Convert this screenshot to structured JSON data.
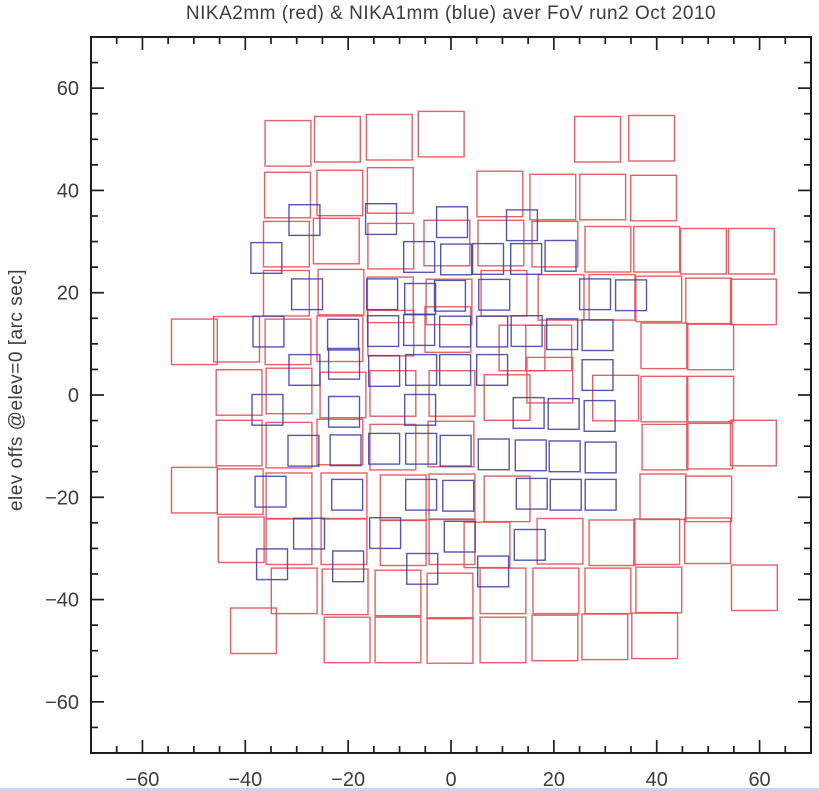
{
  "figure": {
    "background": "#ffffff",
    "frame_color": "#1d1d1d"
  },
  "chart_data": {
    "type": "scatter",
    "marker": "open-square",
    "title": "NIKA2mm (red) & NIKA1mm (blue) aver FoV run2 Oct 2010",
    "xlabel": "",
    "ylabel": "elev offs @elev=0 [arc sec]",
    "xlim": [
      -70,
      70
    ],
    "ylim": [
      -70,
      70
    ],
    "x_ticks": [
      -60,
      -40,
      -20,
      0,
      20,
      40,
      60
    ],
    "y_ticks": [
      -60,
      -40,
      -20,
      0,
      20,
      40,
      60
    ],
    "minor_tick_step": 5,
    "grid": false,
    "legend_position": "none",
    "series": [
      {
        "name": "NIKA2mm",
        "color": "#e14b50",
        "marker": "open-square",
        "marker_size_arcsec": 8.9,
        "points": [
          [
            -31.7,
            49.2
          ],
          [
            -22.1,
            50.0
          ],
          [
            -12.0,
            50.4
          ],
          [
            -1.9,
            51.0
          ],
          [
            28.5,
            50.0
          ],
          [
            39.0,
            50.2
          ],
          [
            -31.8,
            39.1
          ],
          [
            -21.6,
            39.5
          ],
          [
            -11.8,
            40.0
          ],
          [
            9.5,
            39.3
          ],
          [
            19.8,
            38.7
          ],
          [
            29.5,
            38.7
          ],
          [
            39.4,
            38.5
          ],
          [
            -32.0,
            29.5
          ],
          [
            -22.3,
            30.1
          ],
          [
            -11.7,
            29.1
          ],
          [
            -0.8,
            29.7
          ],
          [
            9.7,
            29.7
          ],
          [
            20.2,
            29.5
          ],
          [
            30.5,
            28.5
          ],
          [
            40.0,
            28.5
          ],
          [
            49.1,
            28.1
          ],
          [
            58.4,
            28.1
          ],
          [
            -32.0,
            19.9
          ],
          [
            -21.4,
            20.1
          ],
          [
            -11.8,
            18.6
          ],
          [
            -0.4,
            18.2
          ],
          [
            10.3,
            19.9
          ],
          [
            21.4,
            19.1
          ],
          [
            31.3,
            19.1
          ],
          [
            40.4,
            18.8
          ],
          [
            50.1,
            18.4
          ],
          [
            58.8,
            18.2
          ],
          [
            -49.9,
            10.4
          ],
          [
            -41.7,
            10.9
          ],
          [
            -31.7,
            10.4
          ],
          [
            -21.6,
            11.0
          ],
          [
            -11.7,
            12.1
          ],
          [
            -0.6,
            12.8
          ],
          [
            13.8,
            9.2
          ],
          [
            19.0,
            9.2
          ],
          [
            41.4,
            9.6
          ],
          [
            50.5,
            9.4
          ],
          [
            -41.2,
            0.5
          ],
          [
            -31.5,
            0.8
          ],
          [
            -21.0,
            0.0
          ],
          [
            -11.3,
            0.3
          ],
          [
            0.2,
            0.3
          ],
          [
            10.9,
            -0.5
          ],
          [
            19.2,
            2.9
          ],
          [
            32.0,
            -0.6
          ],
          [
            41.4,
            -0.8
          ],
          [
            50.5,
            -0.8
          ],
          [
            -41.2,
            -9.4
          ],
          [
            -31.5,
            -9.8
          ],
          [
            -21.6,
            -9.2
          ],
          [
            -11.3,
            -10.2
          ],
          [
            0.0,
            -9.6
          ],
          [
            41.6,
            -10.2
          ],
          [
            50.3,
            -10.0
          ],
          [
            58.8,
            -9.4
          ],
          [
            -49.9,
            -18.6
          ],
          [
            -41.0,
            -18.9
          ],
          [
            -31.5,
            -19.7
          ],
          [
            -20.8,
            -19.7
          ],
          [
            -9.3,
            -20.1
          ],
          [
            0.2,
            -19.9
          ],
          [
            10.9,
            -20.3
          ],
          [
            41.2,
            -19.9
          ],
          [
            50.1,
            -20.3
          ],
          [
            -40.8,
            -28.3
          ],
          [
            -31.5,
            -28.7
          ],
          [
            -20.8,
            -28.7
          ],
          [
            -9.3,
            -28.9
          ],
          [
            0.2,
            -28.7
          ],
          [
            7.0,
            -29.3
          ],
          [
            21.2,
            -28.6
          ],
          [
            31.3,
            -28.9
          ],
          [
            40.0,
            -28.7
          ],
          [
            49.9,
            -28.5
          ],
          [
            -30.5,
            -38.3
          ],
          [
            -20.6,
            -38.5
          ],
          [
            -10.3,
            -38.7
          ],
          [
            -0.2,
            -39.3
          ],
          [
            10.1,
            -38.3
          ],
          [
            20.4,
            -38.3
          ],
          [
            30.5,
            -38.3
          ],
          [
            40.4,
            -38.1
          ],
          [
            59.0,
            -37.7
          ],
          [
            -38.4,
            -46.1
          ],
          [
            -20.2,
            -47.9
          ],
          [
            -10.3,
            -47.9
          ],
          [
            -0.2,
            -48.0
          ],
          [
            10.1,
            -47.9
          ],
          [
            20.2,
            -47.5
          ],
          [
            29.9,
            -47.3
          ],
          [
            39.6,
            -47.1
          ]
        ]
      },
      {
        "name": "NIKA1mm",
        "color": "#3f3fab",
        "marker": "open-square",
        "marker_size_arcsec": 6.0,
        "points": [
          [
            -28.5,
            34.2
          ],
          [
            -13.6,
            34.4
          ],
          [
            0.2,
            33.8
          ],
          [
            13.8,
            33.2
          ],
          [
            -35.9,
            26.8
          ],
          [
            -6.2,
            27.0
          ],
          [
            1.0,
            26.5
          ],
          [
            7.2,
            26.6
          ],
          [
            14.6,
            26.6
          ],
          [
            21.3,
            27.2
          ],
          [
            -28.0,
            19.7
          ],
          [
            -13.4,
            19.7
          ],
          [
            -6.0,
            18.8
          ],
          [
            -0.2,
            19.4
          ],
          [
            8.4,
            19.6
          ],
          [
            28.0,
            19.7
          ],
          [
            35.0,
            19.5
          ],
          [
            -35.5,
            12.4
          ],
          [
            -21.0,
            11.8
          ],
          [
            -13.2,
            12.5
          ],
          [
            -6.2,
            12.7
          ],
          [
            0.8,
            12.4
          ],
          [
            8.0,
            12.4
          ],
          [
            14.7,
            12.5
          ],
          [
            21.6,
            11.9
          ],
          [
            28.5,
            11.7
          ],
          [
            -28.5,
            4.9
          ],
          [
            -20.8,
            6.1
          ],
          [
            -13.0,
            4.7
          ],
          [
            -5.8,
            4.9
          ],
          [
            0.8,
            4.9
          ],
          [
            8.0,
            4.9
          ],
          [
            28.5,
            3.9
          ],
          [
            -35.7,
            -2.9
          ],
          [
            -20.8,
            -3.3
          ],
          [
            -6.0,
            -2.9
          ],
          [
            15.1,
            -3.5
          ],
          [
            21.9,
            -3.7
          ],
          [
            28.9,
            -4.1
          ],
          [
            -28.7,
            -10.9
          ],
          [
            -20.5,
            -10.8
          ],
          [
            -13.0,
            -10.5
          ],
          [
            -5.8,
            -10.5
          ],
          [
            0.9,
            -10.9
          ],
          [
            8.3,
            -11.6
          ],
          [
            15.5,
            -11.8
          ],
          [
            22.1,
            -12.0
          ],
          [
            29.1,
            -12.2
          ],
          [
            -35.1,
            -18.9
          ],
          [
            -20.2,
            -19.5
          ],
          [
            -5.8,
            -19.5
          ],
          [
            1.4,
            -19.7
          ],
          [
            15.7,
            -19.3
          ],
          [
            22.3,
            -19.5
          ],
          [
            29.1,
            -19.5
          ],
          [
            -27.6,
            -27.1
          ],
          [
            -12.8,
            -27.0
          ],
          [
            1.7,
            -27.7
          ],
          [
            15.3,
            -29.3
          ],
          [
            -34.8,
            -33.1
          ],
          [
            -20.0,
            -33.5
          ],
          [
            -5.6,
            -34.0
          ],
          [
            8.2,
            -34.5
          ]
        ]
      }
    ]
  }
}
